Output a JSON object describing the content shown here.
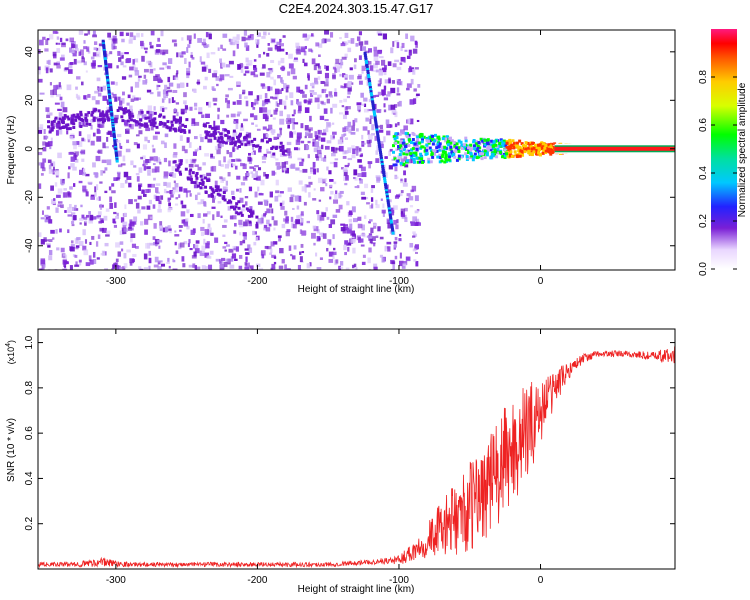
{
  "title": "C2E4.2024.303.15.47.G17",
  "colors": {
    "snr_line": "#ee2222",
    "spec_purple": "#7a1fd6",
    "axis": "#000000"
  },
  "chart_data": [
    {
      "type": "heatmap",
      "xlabel": "Height of straight line (km)",
      "ylabel": "Frequency (Hz)",
      "xlim": [
        -355,
        95
      ],
      "ylim": [
        -50,
        49
      ],
      "x_ticks": [
        -300,
        -200,
        -100,
        0
      ],
      "x_tick_labels": [
        "-300",
        "-200",
        "-100",
        "0"
      ],
      "y_ticks": [
        -40,
        -20,
        0,
        20,
        40
      ],
      "y_tick_labels": [
        "-40",
        "-20",
        "0",
        "20",
        "40"
      ],
      "colorbar": {
        "label": "Normalized spectral amplitude",
        "range": [
          0,
          1
        ],
        "ticks": [
          0.0,
          0.2,
          0.4,
          0.6,
          0.8
        ],
        "tick_labels": [
          "0.0",
          "0.2",
          "0.4",
          "0.6",
          "0.8"
        ]
      },
      "features": {
        "noise_region_x": [
          -355,
          -95
        ],
        "carrier_line": {
          "x": [
            -105,
            95
          ],
          "freq_hz": 0
        },
        "fading_streaks": [
          {
            "x": [
              -310,
              -300
            ],
            "freq_hz": [
              45,
              -5
            ]
          },
          {
            "x": [
              -125,
              -105
            ],
            "freq_hz": [
              40,
              -35
            ]
          }
        ]
      }
    },
    {
      "type": "line",
      "xlabel": "Height of straight line (km)",
      "ylabel": "SNR (10 * v/v)",
      "y_multiplier_label": "(x10",
      "y_multiplier_exp": "4",
      "xlim": [
        -355,
        95
      ],
      "ylim": [
        0,
        1.06
      ],
      "x_ticks": [
        -300,
        -200,
        -100,
        0
      ],
      "x_tick_labels": [
        "-300",
        "-200",
        "-100",
        "0"
      ],
      "y_ticks": [
        0.2,
        0.4,
        0.6,
        0.8,
        1.0
      ],
      "y_tick_labels": [
        "0.2",
        "0.4",
        "0.6",
        "0.8",
        "1.0"
      ],
      "series": [
        {
          "x": [
            -355,
            -330,
            -310,
            -290,
            -250,
            -200,
            -150,
            -120,
            -100,
            -90,
            -80,
            -70,
            -60,
            -50,
            -40,
            -30,
            -20,
            -10,
            0,
            10,
            20,
            30,
            40,
            60,
            80,
            95
          ],
          "y": [
            0.02,
            0.02,
            0.03,
            0.02,
            0.02,
            0.02,
            0.02,
            0.03,
            0.04,
            0.08,
            0.13,
            0.18,
            0.22,
            0.27,
            0.35,
            0.42,
            0.52,
            0.6,
            0.7,
            0.8,
            0.88,
            0.93,
            0.95,
            0.95,
            0.94,
            0.94
          ],
          "spread": [
            0.01,
            0.01,
            0.02,
            0.01,
            0.01,
            0.01,
            0.01,
            0.01,
            0.02,
            0.05,
            0.08,
            0.12,
            0.16,
            0.2,
            0.22,
            0.25,
            0.25,
            0.22,
            0.15,
            0.08,
            0.04,
            0.02,
            0.015,
            0.015,
            0.02,
            0.05
          ]
        }
      ]
    }
  ]
}
